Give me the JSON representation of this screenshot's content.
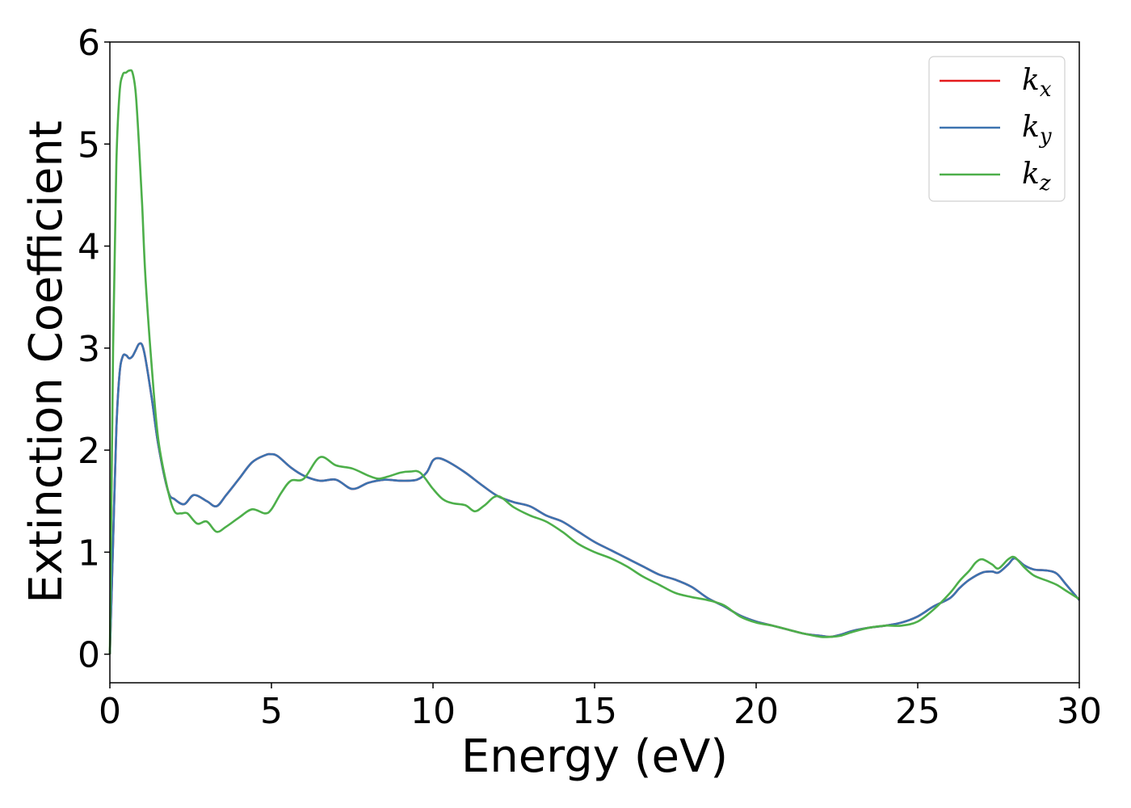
{
  "chart_data": {
    "type": "line",
    "xlabel": "Energy (eV)",
    "ylabel": "Extinction Coefficient",
    "xlim": [
      0,
      30
    ],
    "ylim": [
      -0.28,
      6.0
    ],
    "xticks": [
      0,
      5,
      10,
      15,
      20,
      25,
      30
    ],
    "yticks": [
      0,
      1,
      2,
      3,
      4,
      5,
      6
    ],
    "grid": false,
    "legend_position": "top-right",
    "series": [
      {
        "name": "k",
        "subscript": "x",
        "color": "#e41a1c",
        "x": [
          0,
          0.1,
          0.2,
          0.3,
          0.4,
          0.5,
          0.6,
          0.7,
          0.8,
          0.9,
          1.0,
          1.1,
          1.3,
          1.5,
          1.8,
          2.0,
          2.3,
          2.6,
          3.0,
          3.3,
          3.6,
          4.0,
          4.4,
          4.8,
          5.0,
          5.2,
          5.6,
          6.0,
          6.5,
          7.0,
          7.5,
          8.0,
          8.5,
          9.0,
          9.5,
          9.8,
          10.0,
          10.2,
          10.5,
          11.0,
          11.5,
          12.0,
          12.5,
          13.0,
          13.5,
          14.0,
          14.5,
          15.0,
          15.5,
          16.0,
          16.5,
          17.0,
          17.5,
          18.0,
          18.5,
          19.0,
          19.5,
          20.0,
          20.5,
          21.0,
          21.5,
          22.0,
          22.3,
          22.6,
          23.0,
          23.5,
          24.0,
          24.5,
          25.0,
          25.5,
          26.0,
          26.3,
          26.6,
          27.0,
          27.3,
          27.5,
          27.8,
          28.0,
          28.3,
          28.6,
          29.0,
          29.3,
          29.6,
          30.0
        ],
        "y": [
          0,
          1.1,
          2.2,
          2.75,
          2.92,
          2.93,
          2.9,
          2.92,
          2.98,
          3.04,
          3.03,
          2.9,
          2.5,
          2.05,
          1.6,
          1.52,
          1.47,
          1.56,
          1.5,
          1.45,
          1.56,
          1.72,
          1.88,
          1.95,
          1.96,
          1.94,
          1.83,
          1.75,
          1.7,
          1.71,
          1.62,
          1.68,
          1.71,
          1.7,
          1.71,
          1.78,
          1.9,
          1.92,
          1.88,
          1.78,
          1.66,
          1.55,
          1.49,
          1.45,
          1.36,
          1.3,
          1.2,
          1.1,
          1.02,
          0.94,
          0.86,
          0.78,
          0.73,
          0.66,
          0.55,
          0.47,
          0.38,
          0.32,
          0.28,
          0.24,
          0.2,
          0.18,
          0.17,
          0.19,
          0.23,
          0.26,
          0.28,
          0.31,
          0.37,
          0.47,
          0.55,
          0.65,
          0.73,
          0.8,
          0.81,
          0.8,
          0.88,
          0.94,
          0.87,
          0.83,
          0.82,
          0.79,
          0.68,
          0.53
        ]
      },
      {
        "name": "k",
        "subscript": "y",
        "color": "#3c73b0",
        "x": [
          0,
          0.1,
          0.2,
          0.3,
          0.4,
          0.5,
          0.6,
          0.7,
          0.8,
          0.9,
          1.0,
          1.1,
          1.3,
          1.5,
          1.8,
          2.0,
          2.3,
          2.6,
          3.0,
          3.3,
          3.6,
          4.0,
          4.4,
          4.8,
          5.0,
          5.2,
          5.6,
          6.0,
          6.5,
          7.0,
          7.5,
          8.0,
          8.5,
          9.0,
          9.5,
          9.8,
          10.0,
          10.2,
          10.5,
          11.0,
          11.5,
          12.0,
          12.5,
          13.0,
          13.5,
          14.0,
          14.5,
          15.0,
          15.5,
          16.0,
          16.5,
          17.0,
          17.5,
          18.0,
          18.5,
          19.0,
          19.5,
          20.0,
          20.5,
          21.0,
          21.5,
          22.0,
          22.3,
          22.6,
          23.0,
          23.5,
          24.0,
          24.5,
          25.0,
          25.5,
          26.0,
          26.3,
          26.6,
          27.0,
          27.3,
          27.5,
          27.8,
          28.0,
          28.3,
          28.6,
          29.0,
          29.3,
          29.6,
          30.0
        ],
        "y": [
          0,
          1.1,
          2.2,
          2.75,
          2.92,
          2.93,
          2.9,
          2.92,
          2.98,
          3.04,
          3.03,
          2.9,
          2.5,
          2.05,
          1.6,
          1.52,
          1.47,
          1.56,
          1.5,
          1.45,
          1.56,
          1.72,
          1.88,
          1.95,
          1.96,
          1.94,
          1.83,
          1.75,
          1.7,
          1.71,
          1.62,
          1.68,
          1.71,
          1.7,
          1.71,
          1.78,
          1.9,
          1.92,
          1.88,
          1.78,
          1.66,
          1.55,
          1.49,
          1.45,
          1.36,
          1.3,
          1.2,
          1.1,
          1.02,
          0.94,
          0.86,
          0.78,
          0.73,
          0.66,
          0.55,
          0.47,
          0.38,
          0.32,
          0.28,
          0.24,
          0.2,
          0.18,
          0.17,
          0.19,
          0.23,
          0.26,
          0.28,
          0.31,
          0.37,
          0.47,
          0.55,
          0.65,
          0.73,
          0.8,
          0.81,
          0.8,
          0.88,
          0.94,
          0.87,
          0.83,
          0.82,
          0.79,
          0.68,
          0.53
        ]
      },
      {
        "name": "k",
        "subscript": "z",
        "color": "#4daf4a",
        "x": [
          0,
          0.1,
          0.2,
          0.3,
          0.4,
          0.5,
          0.6,
          0.7,
          0.8,
          0.9,
          1.0,
          1.1,
          1.3,
          1.5,
          1.8,
          2.0,
          2.2,
          2.4,
          2.7,
          3.0,
          3.3,
          3.6,
          4.0,
          4.4,
          4.8,
          5.0,
          5.3,
          5.6,
          6.0,
          6.5,
          7.0,
          7.5,
          8.0,
          8.3,
          8.6,
          9.0,
          9.3,
          9.6,
          10.0,
          10.3,
          10.6,
          11.0,
          11.3,
          11.6,
          12.0,
          12.5,
          13.0,
          13.5,
          14.0,
          14.5,
          15.0,
          15.5,
          16.0,
          16.5,
          17.0,
          17.5,
          18.0,
          18.5,
          19.0,
          19.5,
          20.0,
          20.5,
          21.0,
          21.5,
          22.0,
          22.3,
          22.6,
          23.0,
          23.5,
          24.0,
          24.5,
          25.0,
          25.5,
          26.0,
          26.3,
          26.6,
          26.8,
          27.0,
          27.3,
          27.5,
          27.8,
          28.0,
          28.3,
          28.6,
          29.0,
          29.3,
          29.6,
          30.0
        ],
        "y": [
          0,
          3.0,
          4.8,
          5.5,
          5.68,
          5.7,
          5.72,
          5.7,
          5.5,
          5.0,
          4.4,
          3.7,
          2.8,
          2.1,
          1.6,
          1.4,
          1.38,
          1.38,
          1.28,
          1.3,
          1.2,
          1.25,
          1.34,
          1.42,
          1.38,
          1.42,
          1.58,
          1.7,
          1.72,
          1.93,
          1.85,
          1.82,
          1.75,
          1.72,
          1.74,
          1.78,
          1.79,
          1.78,
          1.62,
          1.52,
          1.48,
          1.46,
          1.4,
          1.46,
          1.55,
          1.44,
          1.36,
          1.3,
          1.2,
          1.08,
          1.0,
          0.94,
          0.86,
          0.76,
          0.68,
          0.6,
          0.56,
          0.53,
          0.48,
          0.37,
          0.31,
          0.28,
          0.24,
          0.2,
          0.17,
          0.17,
          0.18,
          0.22,
          0.26,
          0.28,
          0.28,
          0.32,
          0.44,
          0.6,
          0.72,
          0.82,
          0.9,
          0.93,
          0.88,
          0.84,
          0.93,
          0.95,
          0.85,
          0.77,
          0.72,
          0.68,
          0.62,
          0.54
        ]
      }
    ]
  }
}
